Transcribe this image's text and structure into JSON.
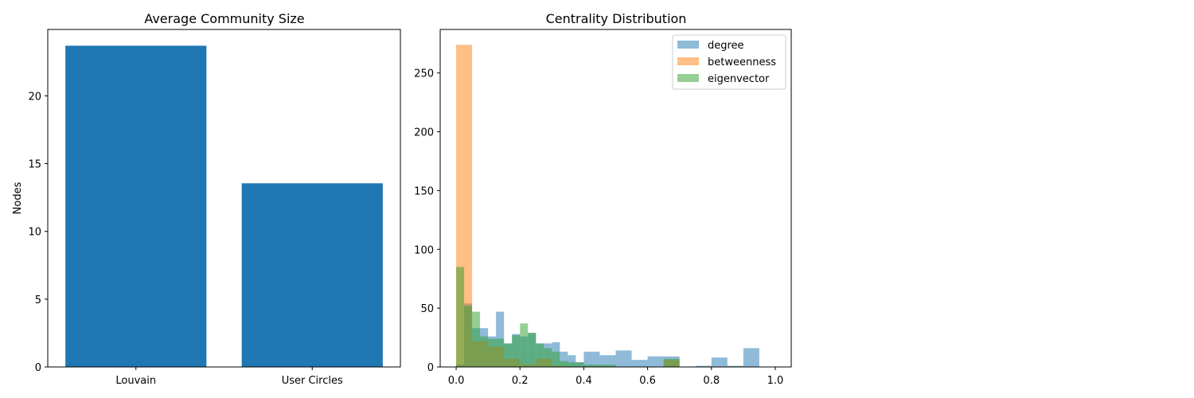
{
  "chart_data": [
    {
      "type": "bar",
      "title": "Average Community Size",
      "xlabel": "",
      "ylabel": "Nodes",
      "categories": [
        "Louvain",
        "User Circles"
      ],
      "values": [
        23.7,
        13.55
      ],
      "ylim": [
        0,
        24.9
      ],
      "yticks": [
        0,
        5,
        10,
        15,
        20
      ],
      "color": "#1f77b4",
      "grid": false
    },
    {
      "type": "histogram",
      "title": "Centrality Distribution",
      "xlabel": "",
      "ylabel": "",
      "xlim": [
        -0.05,
        1.05
      ],
      "ylim": [
        0,
        287
      ],
      "xticks": [
        0.0,
        0.2,
        0.4,
        0.6,
        0.8,
        1.0
      ],
      "yticks": [
        0,
        50,
        100,
        150,
        200,
        250
      ],
      "bins": [
        0.0,
        0.05,
        0.1,
        0.15,
        0.2,
        0.25,
        0.3,
        0.35,
        0.4,
        0.45,
        0.5,
        0.55,
        0.6,
        0.65,
        0.7,
        0.75,
        0.8,
        0.85,
        0.9,
        0.95,
        1.0
      ],
      "legend_position": "top-right",
      "grid": false,
      "series": [
        {
          "name": "degree",
          "color": "#1f77b4",
          "opacity": 0.5,
          "x": [
            0.0,
            0.025,
            0.05,
            0.075,
            0.1,
            0.125,
            0.15,
            0.175,
            0.2,
            0.225,
            0.25,
            0.275,
            0.3,
            0.325,
            0.35,
            0.375,
            0.4,
            0.45,
            0.5,
            0.55,
            0.6,
            0.65,
            0.7,
            0.75,
            0.8,
            0.85,
            0.9,
            0.95
          ],
          "values": [
            2,
            54,
            33,
            33,
            26,
            47,
            20,
            28,
            26,
            29,
            20,
            20,
            21,
            13,
            10,
            4,
            13,
            10,
            14,
            6,
            9,
            9,
            0,
            1,
            8,
            1,
            16,
            0
          ]
        },
        {
          "name": "betweenness",
          "color": "#ff7f0e",
          "opacity": 0.5,
          "x": [
            0.0,
            0.05,
            0.1,
            0.15,
            0.2,
            0.25,
            0.3,
            0.35,
            0.4,
            0.45,
            0.5,
            0.55,
            0.6,
            0.65
          ],
          "values": [
            274,
            22,
            17,
            7,
            2,
            7,
            1,
            0,
            0,
            0,
            0,
            0,
            0,
            6
          ]
        },
        {
          "name": "eigenvector",
          "color": "#2ca02c",
          "opacity": 0.5,
          "x": [
            0.0,
            0.025,
            0.05,
            0.075,
            0.1,
            0.125,
            0.15,
            0.175,
            0.2,
            0.225,
            0.25,
            0.275,
            0.3,
            0.325,
            0.35,
            0.375,
            0.4,
            0.45,
            0.5,
            0.55,
            0.6,
            0.65
          ],
          "values": [
            85,
            52,
            47,
            26,
            24,
            24,
            20,
            27,
            37,
            29,
            20,
            16,
            13,
            5,
            4,
            4,
            2,
            2,
            0,
            0,
            0,
            7
          ]
        }
      ]
    }
  ]
}
